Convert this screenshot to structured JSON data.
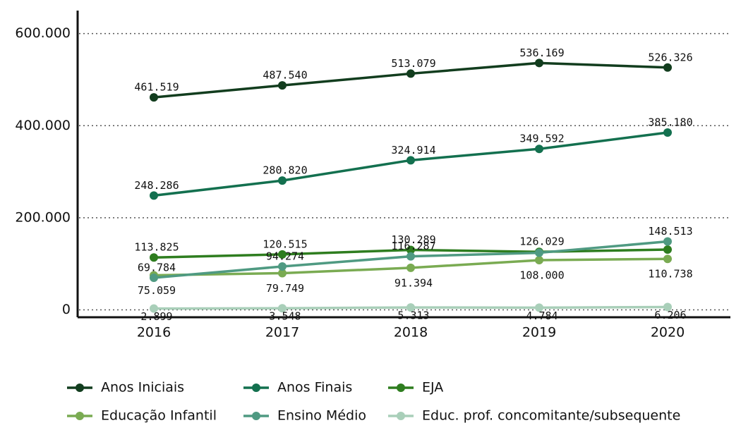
{
  "chart_data": {
    "type": "line",
    "categories": [
      "2016",
      "2017",
      "2018",
      "2019",
      "2020"
    ],
    "ylim": [
      -16000,
      650000
    ],
    "yticks": [
      0,
      {
        "value": 200000,
        "label": "200.000"
      },
      {
        "value": 400000,
        "label": "400.000"
      },
      {
        "value": 600000,
        "label": "600.000"
      }
    ],
    "grid": true,
    "legend": "bottom",
    "series": [
      {
        "name": "Anos Iniciais",
        "color": "#123d1e",
        "values": [
          461519,
          487540,
          513079,
          536169,
          526326
        ],
        "value_labels": [
          "461.519",
          "487.540",
          "513.079",
          "536.169",
          "526.326"
        ]
      },
      {
        "name": "Anos Finais",
        "color": "#13704f",
        "values": [
          248286,
          280820,
          324914,
          349592,
          385180
        ],
        "value_labels": [
          "248.286",
          "280.820",
          "324.914",
          "349.592",
          "385.180"
        ]
      },
      {
        "name": "EJA",
        "color": "#2e7d1f",
        "values": [
          113825,
          120515,
          130289,
          126029,
          131000
        ],
        "value_labels": [
          "113.825",
          "120.515",
          "130.289",
          "126.029",
          null
        ]
      },
      {
        "name": "Educação Infantil",
        "color": "#7aab52",
        "values": [
          75059,
          79749,
          91394,
          108000,
          110738
        ],
        "value_labels": [
          "75.059",
          "79.749",
          "91.394",
          "108.000",
          "110.738"
        ]
      },
      {
        "name": "Ensino Médio",
        "color": "#4f9a82",
        "values": [
          69784,
          94274,
          116287,
          124000,
          148513
        ],
        "value_labels": [
          "69.784",
          "94.274",
          "116.287",
          null,
          "148.513"
        ]
      },
      {
        "name": "Educ. prof. concomitante/subsequente",
        "color": "#a9cfb9",
        "values": [
          2899,
          3548,
          5313,
          4784,
          6206
        ],
        "value_labels": [
          "2.899",
          "3.548",
          "5.313",
          "4.784",
          "6.206"
        ]
      }
    ]
  }
}
